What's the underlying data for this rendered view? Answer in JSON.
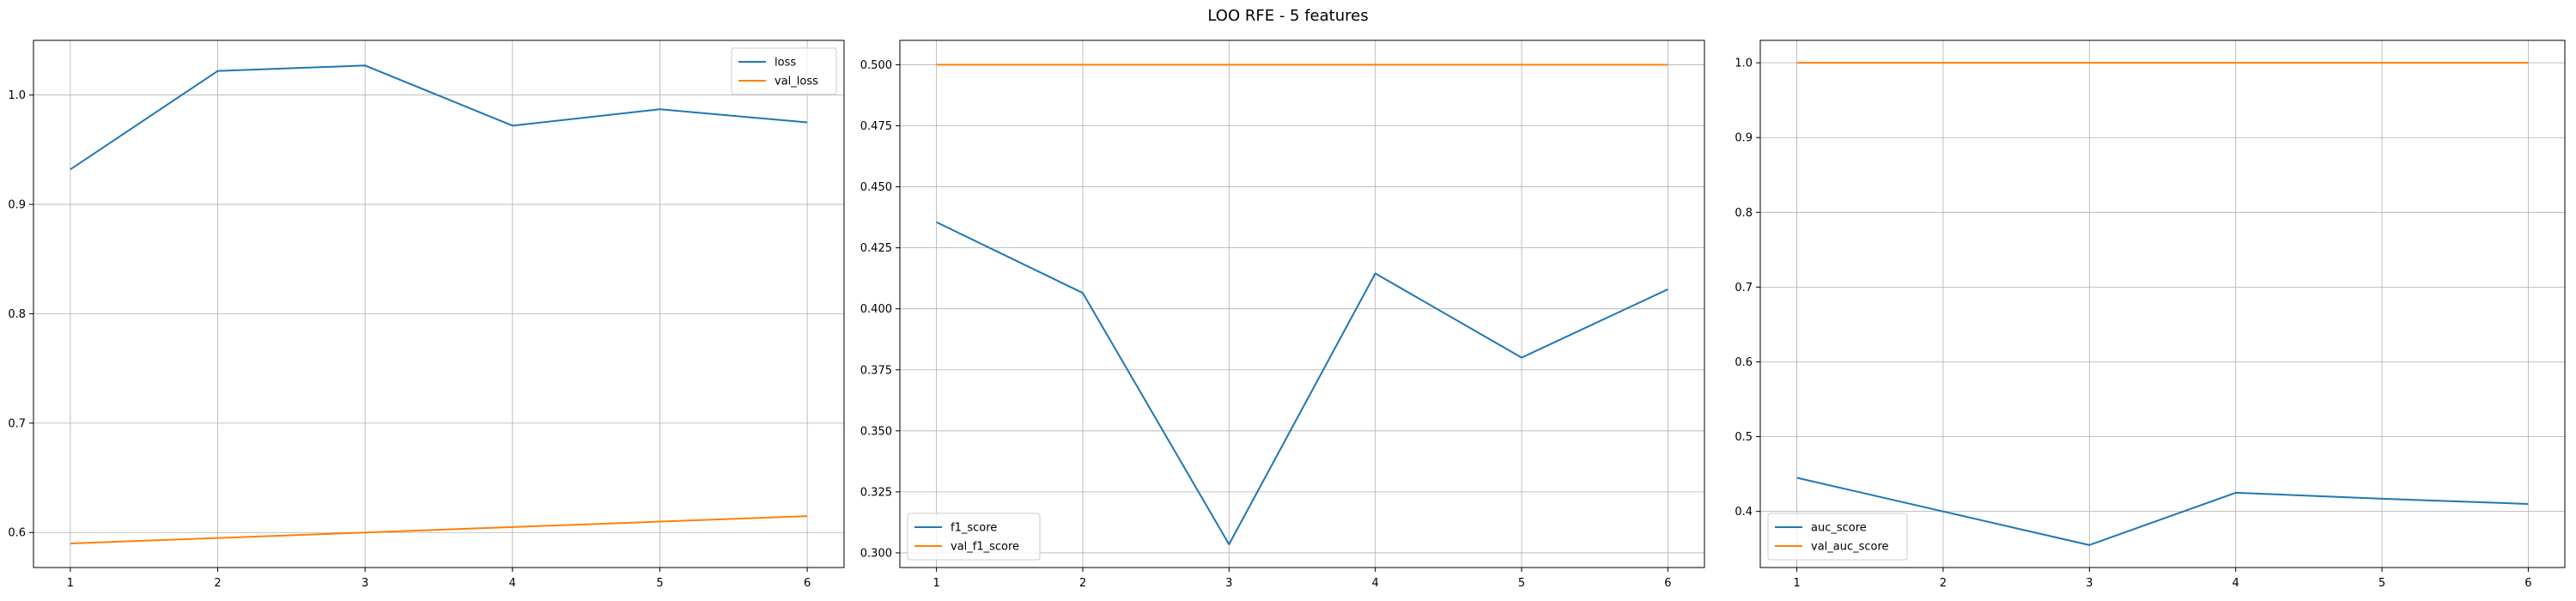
{
  "figure": {
    "title": "LOO RFE - 5 features"
  },
  "chart_data": [
    {
      "type": "line",
      "title": "",
      "xlabel": "",
      "ylabel": "",
      "x": [
        1,
        2,
        3,
        4,
        5,
        6
      ],
      "xlim": [
        0.75,
        6.25
      ],
      "ylim": [
        0.568,
        1.05
      ],
      "xticks": [
        1,
        2,
        3,
        4,
        5,
        6
      ],
      "yticks": [
        0.6,
        0.7,
        0.8,
        0.9,
        1.0
      ],
      "ytick_labels": [
        "0.6",
        "0.7",
        "0.8",
        "0.9",
        "1.0"
      ],
      "grid": true,
      "legend": "upper right",
      "series": [
        {
          "name": "loss",
          "color": "#1f77b4",
          "values": [
            0.932,
            1.022,
            1.027,
            0.972,
            0.987,
            0.975
          ]
        },
        {
          "name": "val_loss",
          "color": "#ff7f0e",
          "values": [
            0.59,
            0.595,
            0.6,
            0.605,
            0.61,
            0.615
          ]
        }
      ]
    },
    {
      "type": "line",
      "title": "",
      "xlabel": "",
      "ylabel": "",
      "x": [
        1,
        2,
        3,
        4,
        5,
        6
      ],
      "xlim": [
        0.75,
        6.25
      ],
      "ylim": [
        0.294,
        0.51
      ],
      "xticks": [
        1,
        2,
        3,
        4,
        5,
        6
      ],
      "yticks": [
        0.3,
        0.325,
        0.35,
        0.375,
        0.4,
        0.425,
        0.45,
        0.475,
        0.5
      ],
      "ytick_labels": [
        "0.300",
        "0.325",
        "0.350",
        "0.375",
        "0.400",
        "0.425",
        "0.450",
        "0.475",
        "0.500"
      ],
      "grid": true,
      "legend": "lower left",
      "series": [
        {
          "name": "f1_score",
          "color": "#1f77b4",
          "values": [
            0.4355,
            0.4065,
            0.3035,
            0.4145,
            0.38,
            0.408
          ]
        },
        {
          "name": "val_f1_score",
          "color": "#ff7f0e",
          "values": [
            0.5,
            0.5,
            0.5,
            0.5,
            0.5,
            0.5
          ]
        }
      ]
    },
    {
      "type": "line",
      "title": "",
      "xlabel": "",
      "ylabel": "",
      "x": [
        1,
        2,
        3,
        4,
        5,
        6
      ],
      "xlim": [
        0.75,
        6.25
      ],
      "ylim": [
        0.325,
        1.03
      ],
      "xticks": [
        1,
        2,
        3,
        4,
        5,
        6
      ],
      "yticks": [
        0.4,
        0.5,
        0.6,
        0.7,
        0.8,
        0.9,
        1.0
      ],
      "ytick_labels": [
        "0.4",
        "0.5",
        "0.6",
        "0.7",
        "0.8",
        "0.9",
        "1.0"
      ],
      "grid": true,
      "legend": "lower left",
      "series": [
        {
          "name": "auc_score",
          "color": "#1f77b4",
          "values": [
            0.445,
            0.4,
            0.355,
            0.425,
            0.417,
            0.41
          ]
        },
        {
          "name": "val_auc_score",
          "color": "#ff7f0e",
          "values": [
            1.0,
            1.0,
            1.0,
            1.0,
            1.0,
            1.0
          ]
        }
      ]
    }
  ]
}
